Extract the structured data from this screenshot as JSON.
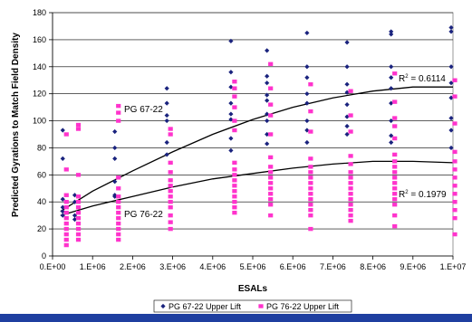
{
  "chart_data": {
    "type": "scatter",
    "xlabel": "ESALs",
    "ylabel": "Predicted Gyrations to Match Field Density",
    "xlim": [
      0,
      10000000
    ],
    "ylim": [
      0,
      180
    ],
    "x_ticks": [
      "0.E+00",
      "1.E+06",
      "2.E+06",
      "3.E+06",
      "4.E+06",
      "5.E+06",
      "6.E+06",
      "7.E+06",
      "8.E+06",
      "9.E+06",
      "1.E+07"
    ],
    "y_ticks": [
      "0",
      "20",
      "40",
      "60",
      "80",
      "100",
      "120",
      "140",
      "160",
      "180"
    ],
    "grid": "horizontal",
    "legend_position": "bottom",
    "annotations": {
      "pg6722_label": "PG 67-22",
      "pg7622_label": "PG 76-22",
      "r2_6722_prefix": "R",
      "r2_6722_sup": "2",
      "r2_6722_value": " = 0.6114",
      "r2_7622_prefix": "R",
      "r2_7622_sup": "2",
      "r2_7622_value": " = 0.1979"
    },
    "series": [
      {
        "name": "PG 67-22 Upper Lift",
        "color": "#1a237e",
        "marker": "diamond",
        "points": [
          [
            300000,
            93
          ],
          [
            300000,
            72
          ],
          [
            300000,
            42
          ],
          [
            300000,
            36
          ],
          [
            300000,
            33
          ],
          [
            300000,
            30
          ],
          [
            600000,
            45
          ],
          [
            600000,
            40
          ],
          [
            600000,
            30
          ],
          [
            600000,
            27
          ],
          [
            1600000,
            92
          ],
          [
            1600000,
            80
          ],
          [
            1600000,
            72
          ],
          [
            1600000,
            55
          ],
          [
            1600000,
            45
          ],
          [
            1600000,
            44
          ],
          [
            2900000,
            124
          ],
          [
            2900000,
            113
          ],
          [
            2900000,
            104
          ],
          [
            2900000,
            100
          ],
          [
            2900000,
            84
          ],
          [
            2900000,
            75
          ],
          [
            4500000,
            159
          ],
          [
            4500000,
            136
          ],
          [
            4500000,
            125
          ],
          [
            4500000,
            113
          ],
          [
            4500000,
            105
          ],
          [
            4500000,
            101
          ],
          [
            4500000,
            87
          ],
          [
            4500000,
            78
          ],
          [
            5400000,
            152
          ],
          [
            5400000,
            133
          ],
          [
            5400000,
            128
          ],
          [
            5400000,
            119
          ],
          [
            5400000,
            115
          ],
          [
            5400000,
            105
          ],
          [
            5400000,
            100
          ],
          [
            5400000,
            90
          ],
          [
            5400000,
            83
          ],
          [
            6400000,
            165
          ],
          [
            6400000,
            140
          ],
          [
            6400000,
            132
          ],
          [
            6400000,
            120
          ],
          [
            6400000,
            113
          ],
          [
            6400000,
            100
          ],
          [
            6400000,
            93
          ],
          [
            6400000,
            84
          ],
          [
            7400000,
            158
          ],
          [
            7400000,
            140
          ],
          [
            7400000,
            127
          ],
          [
            7400000,
            121
          ],
          [
            7400000,
            112
          ],
          [
            7400000,
            103
          ],
          [
            7400000,
            96
          ],
          [
            7400000,
            90
          ],
          [
            8500000,
            166
          ],
          [
            8500000,
            164
          ],
          [
            8500000,
            140
          ],
          [
            8500000,
            132
          ],
          [
            8500000,
            124
          ],
          [
            8500000,
            113
          ],
          [
            8500000,
            100
          ],
          [
            8500000,
            89
          ],
          [
            8500000,
            84
          ],
          [
            10000000,
            169
          ],
          [
            10000000,
            166
          ],
          [
            10000000,
            140
          ],
          [
            10000000,
            128
          ],
          [
            10000000,
            117
          ],
          [
            10000000,
            102
          ],
          [
            10000000,
            93
          ],
          [
            10000000,
            80
          ]
        ]
      },
      {
        "name": "PG 76-22 Upper Lift",
        "color": "#ff33cc",
        "marker": "square",
        "points": [
          [
            300000,
            90
          ],
          [
            300000,
            64
          ],
          [
            300000,
            45
          ],
          [
            300000,
            40
          ],
          [
            300000,
            36
          ],
          [
            300000,
            32
          ],
          [
            300000,
            28
          ],
          [
            300000,
            24
          ],
          [
            300000,
            20
          ],
          [
            300000,
            16
          ],
          [
            300000,
            12
          ],
          [
            300000,
            8
          ],
          [
            600000,
            97
          ],
          [
            600000,
            94
          ],
          [
            600000,
            60
          ],
          [
            600000,
            44
          ],
          [
            600000,
            40
          ],
          [
            600000,
            36
          ],
          [
            600000,
            32
          ],
          [
            600000,
            28
          ],
          [
            600000,
            24
          ],
          [
            600000,
            20
          ],
          [
            600000,
            16
          ],
          [
            600000,
            12
          ],
          [
            1600000,
            111
          ],
          [
            1600000,
            106
          ],
          [
            1600000,
            100
          ],
          [
            1600000,
            58
          ],
          [
            1600000,
            50
          ],
          [
            1600000,
            44
          ],
          [
            1600000,
            40
          ],
          [
            1600000,
            36
          ],
          [
            1600000,
            32
          ],
          [
            1600000,
            28
          ],
          [
            1600000,
            24
          ],
          [
            1600000,
            20
          ],
          [
            1600000,
            16
          ],
          [
            1600000,
            12
          ],
          [
            2900000,
            94
          ],
          [
            2900000,
            90
          ],
          [
            2900000,
            69
          ],
          [
            2900000,
            62
          ],
          [
            2900000,
            56
          ],
          [
            2900000,
            52
          ],
          [
            2900000,
            48
          ],
          [
            2900000,
            44
          ],
          [
            2900000,
            40
          ],
          [
            2900000,
            36
          ],
          [
            2900000,
            30
          ],
          [
            2900000,
            25
          ],
          [
            2900000,
            20
          ],
          [
            4500000,
            129
          ],
          [
            4500000,
            124
          ],
          [
            4500000,
            118
          ],
          [
            4500000,
            110
          ],
          [
            4500000,
            100
          ],
          [
            4500000,
            93
          ],
          [
            4500000,
            69
          ],
          [
            4500000,
            64
          ],
          [
            4500000,
            60
          ],
          [
            4500000,
            56
          ],
          [
            4500000,
            52
          ],
          [
            4500000,
            48
          ],
          [
            4500000,
            44
          ],
          [
            4500000,
            40
          ],
          [
            4500000,
            36
          ],
          [
            4500000,
            32
          ],
          [
            5400000,
            142
          ],
          [
            5400000,
            124
          ],
          [
            5400000,
            112
          ],
          [
            5400000,
            104
          ],
          [
            5400000,
            90
          ],
          [
            5400000,
            73
          ],
          [
            5400000,
            66
          ],
          [
            5400000,
            62
          ],
          [
            5400000,
            58
          ],
          [
            5400000,
            54
          ],
          [
            5400000,
            50
          ],
          [
            5400000,
            46
          ],
          [
            5400000,
            42
          ],
          [
            5400000,
            38
          ],
          [
            5400000,
            30
          ],
          [
            6400000,
            127
          ],
          [
            6400000,
            107
          ],
          [
            6400000,
            92
          ],
          [
            6400000,
            72
          ],
          [
            6400000,
            66
          ],
          [
            6400000,
            62
          ],
          [
            6400000,
            58
          ],
          [
            6400000,
            54
          ],
          [
            6400000,
            50
          ],
          [
            6400000,
            46
          ],
          [
            6400000,
            42
          ],
          [
            6400000,
            38
          ],
          [
            6400000,
            34
          ],
          [
            6400000,
            30
          ],
          [
            6400000,
            20
          ],
          [
            7400000,
            122
          ],
          [
            7400000,
            104
          ],
          [
            7400000,
            92
          ],
          [
            7400000,
            74
          ],
          [
            7400000,
            68
          ],
          [
            7400000,
            62
          ],
          [
            7400000,
            58
          ],
          [
            7400000,
            54
          ],
          [
            7400000,
            50
          ],
          [
            7400000,
            46
          ],
          [
            7400000,
            42
          ],
          [
            7400000,
            38
          ],
          [
            7400000,
            34
          ],
          [
            7400000,
            30
          ],
          [
            7400000,
            26
          ],
          [
            8500000,
            135
          ],
          [
            8500000,
            114
          ],
          [
            8500000,
            102
          ],
          [
            8500000,
            96
          ],
          [
            8500000,
            87
          ],
          [
            8500000,
            75
          ],
          [
            8500000,
            70
          ],
          [
            8500000,
            66
          ],
          [
            8500000,
            62
          ],
          [
            8500000,
            58
          ],
          [
            8500000,
            54
          ],
          [
            8500000,
            50
          ],
          [
            8500000,
            46
          ],
          [
            8500000,
            42
          ],
          [
            8500000,
            38
          ],
          [
            8500000,
            30
          ],
          [
            8500000,
            22
          ],
          [
            10000000,
            130
          ],
          [
            10000000,
            118
          ],
          [
            10000000,
            98
          ],
          [
            10000000,
            77
          ],
          [
            10000000,
            70
          ],
          [
            10000000,
            64
          ],
          [
            10000000,
            58
          ],
          [
            10000000,
            52
          ],
          [
            10000000,
            46
          ],
          [
            10000000,
            40
          ],
          [
            10000000,
            34
          ],
          [
            10000000,
            28
          ],
          [
            10000000,
            16
          ]
        ]
      }
    ],
    "trendlines": [
      {
        "series": "PG 67-22 Upper Lift",
        "type": "polynomial-2",
        "color": "#000000",
        "points": [
          [
            200000,
            33
          ],
          [
            1000000,
            48
          ],
          [
            2000000,
            63
          ],
          [
            3000000,
            77
          ],
          [
            4000000,
            90
          ],
          [
            5000000,
            101
          ],
          [
            6000000,
            110
          ],
          [
            7000000,
            117
          ],
          [
            8000000,
            122
          ],
          [
            9000000,
            125
          ],
          [
            10000000,
            125
          ]
        ]
      },
      {
        "series": "PG 76-22 Upper Lift",
        "type": "polynomial-2",
        "color": "#000000",
        "points": [
          [
            200000,
            30
          ],
          [
            1000000,
            37
          ],
          [
            2000000,
            44
          ],
          [
            3000000,
            51
          ],
          [
            4000000,
            57
          ],
          [
            5000000,
            61
          ],
          [
            6000000,
            65
          ],
          [
            7000000,
            68
          ],
          [
            8000000,
            70
          ],
          [
            9000000,
            70
          ],
          [
            10000000,
            69
          ]
        ]
      }
    ]
  }
}
